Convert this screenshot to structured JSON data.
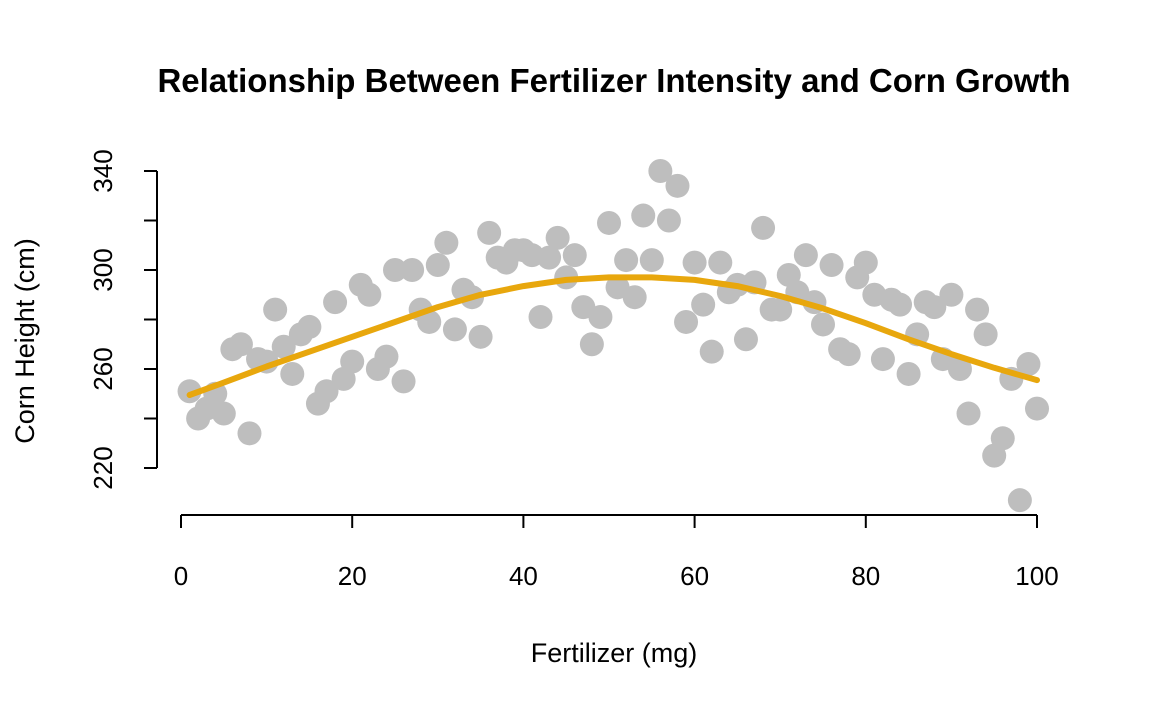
{
  "colors": {
    "points": "#BEBEBE",
    "trend": "#E8A70D",
    "axis": "#000000"
  },
  "chart_data": {
    "type": "scatter",
    "title": "Relationship Between Fertilizer Intensity and Corn Growth",
    "xlabel": "Fertilizer (mg)",
    "ylabel": "Corn Height (cm)",
    "xlim": [
      0,
      100
    ],
    "ylim": [
      220,
      340
    ],
    "xticks": [
      "0",
      "20",
      "40",
      "60",
      "80",
      "100"
    ],
    "yticks": [
      "220",
      "260",
      "300",
      "340"
    ],
    "grid": false,
    "legend": "none",
    "series": [
      {
        "type": "scatter",
        "points": [
          [
            1,
            251
          ],
          [
            2,
            240
          ],
          [
            3,
            244
          ],
          [
            4,
            250
          ],
          [
            5,
            242
          ],
          [
            6,
            268
          ],
          [
            7,
            270
          ],
          [
            8,
            234
          ],
          [
            9,
            264
          ],
          [
            10,
            263
          ],
          [
            11,
            284
          ],
          [
            12,
            269
          ],
          [
            13,
            258
          ],
          [
            14,
            274
          ],
          [
            15,
            277
          ],
          [
            16,
            246
          ],
          [
            17,
            251
          ],
          [
            18,
            287
          ],
          [
            19,
            256
          ],
          [
            20,
            263
          ],
          [
            21,
            294
          ],
          [
            22,
            290
          ],
          [
            23,
            260
          ],
          [
            24,
            265
          ],
          [
            25,
            300
          ],
          [
            26,
            255
          ],
          [
            27,
            300
          ],
          [
            28,
            284
          ],
          [
            29,
            279
          ],
          [
            30,
            302
          ],
          [
            31,
            311
          ],
          [
            32,
            276
          ],
          [
            33,
            292
          ],
          [
            34,
            289
          ],
          [
            35,
            273
          ],
          [
            36,
            315
          ],
          [
            37,
            305
          ],
          [
            38,
            303
          ],
          [
            39,
            308
          ],
          [
            40,
            308
          ],
          [
            41,
            306
          ],
          [
            42,
            281
          ],
          [
            43,
            305
          ],
          [
            44,
            313
          ],
          [
            45,
            297
          ],
          [
            46,
            306
          ],
          [
            47,
            285
          ],
          [
            48,
            270
          ],
          [
            49,
            281
          ],
          [
            50,
            319
          ],
          [
            51,
            293
          ],
          [
            52,
            304
          ],
          [
            53,
            289
          ],
          [
            54,
            322
          ],
          [
            55,
            304
          ],
          [
            56,
            340
          ],
          [
            57,
            320
          ],
          [
            58,
            334
          ],
          [
            59,
            279
          ],
          [
            60,
            303
          ],
          [
            61,
            286
          ],
          [
            62,
            267
          ],
          [
            63,
            303
          ],
          [
            64,
            291
          ],
          [
            65,
            294
          ],
          [
            66,
            272
          ],
          [
            67,
            295
          ],
          [
            68,
            317
          ],
          [
            69,
            284
          ],
          [
            70,
            284
          ],
          [
            71,
            298
          ],
          [
            72,
            291
          ],
          [
            73,
            306
          ],
          [
            74,
            287
          ],
          [
            75,
            278
          ],
          [
            76,
            302
          ],
          [
            77,
            268
          ],
          [
            78,
            266
          ],
          [
            79,
            297
          ],
          [
            80,
            303
          ],
          [
            81,
            290
          ],
          [
            82,
            264
          ],
          [
            83,
            288
          ],
          [
            84,
            286
          ],
          [
            85,
            258
          ],
          [
            86,
            274
          ],
          [
            87,
            287
          ],
          [
            88,
            285
          ],
          [
            89,
            264
          ],
          [
            90,
            290
          ],
          [
            91,
            260
          ],
          [
            92,
            242
          ],
          [
            93,
            284
          ],
          [
            94,
            274
          ],
          [
            95,
            225
          ],
          [
            96,
            232
          ],
          [
            97,
            256
          ],
          [
            98,
            207
          ],
          [
            99,
            262
          ],
          [
            100,
            244
          ]
        ]
      },
      {
        "type": "line",
        "points": [
          [
            1,
            249.5
          ],
          [
            5,
            254.5
          ],
          [
            10,
            261
          ],
          [
            15,
            267
          ],
          [
            20,
            273
          ],
          [
            25,
            279
          ],
          [
            30,
            285
          ],
          [
            35,
            290
          ],
          [
            40,
            293.5
          ],
          [
            45,
            296
          ],
          [
            50,
            297
          ],
          [
            55,
            297
          ],
          [
            60,
            296
          ],
          [
            65,
            293.5
          ],
          [
            70,
            289.5
          ],
          [
            75,
            284.5
          ],
          [
            80,
            278.5
          ],
          [
            85,
            272
          ],
          [
            90,
            266
          ],
          [
            95,
            260.5
          ],
          [
            100,
            255.5
          ]
        ]
      }
    ]
  }
}
